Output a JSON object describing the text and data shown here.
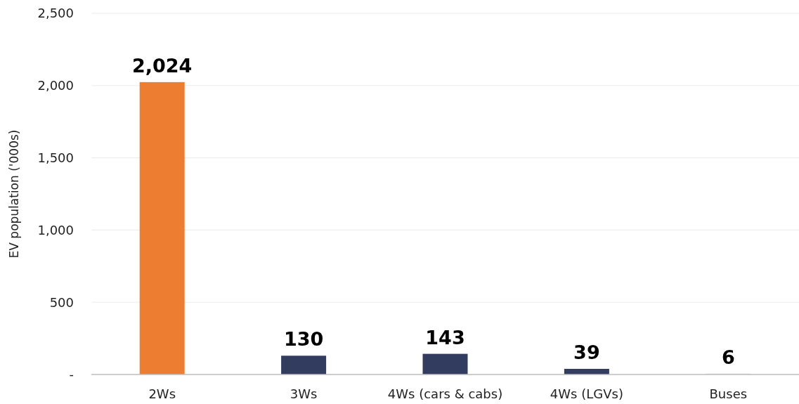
{
  "chart_data": {
    "type": "bar",
    "ylabel": "EV population ('000s)",
    "categories": [
      "2Ws",
      "3Ws",
      "4Ws (cars & cabs)",
      "4Ws (LGVs)",
      "Buses"
    ],
    "values": [
      2024,
      130,
      143,
      39,
      6
    ],
    "colors": [
      "#ed7d31",
      "#323c5e",
      "#323c5e",
      "#323c5e",
      "#d9d9d9"
    ],
    "ylim": [
      0,
      2500
    ],
    "yticks": [
      {
        "value": 0,
        "label": "-"
      },
      {
        "value": 500,
        "label": "500"
      },
      {
        "value": 1000,
        "label": "1,000"
      },
      {
        "value": 1500,
        "label": "1,500"
      },
      {
        "value": 2000,
        "label": "2,000"
      },
      {
        "value": 2500,
        "label": "2,500"
      }
    ],
    "grid": "y",
    "value_labels": [
      "2,024",
      "130",
      "143",
      "39",
      "6"
    ]
  }
}
